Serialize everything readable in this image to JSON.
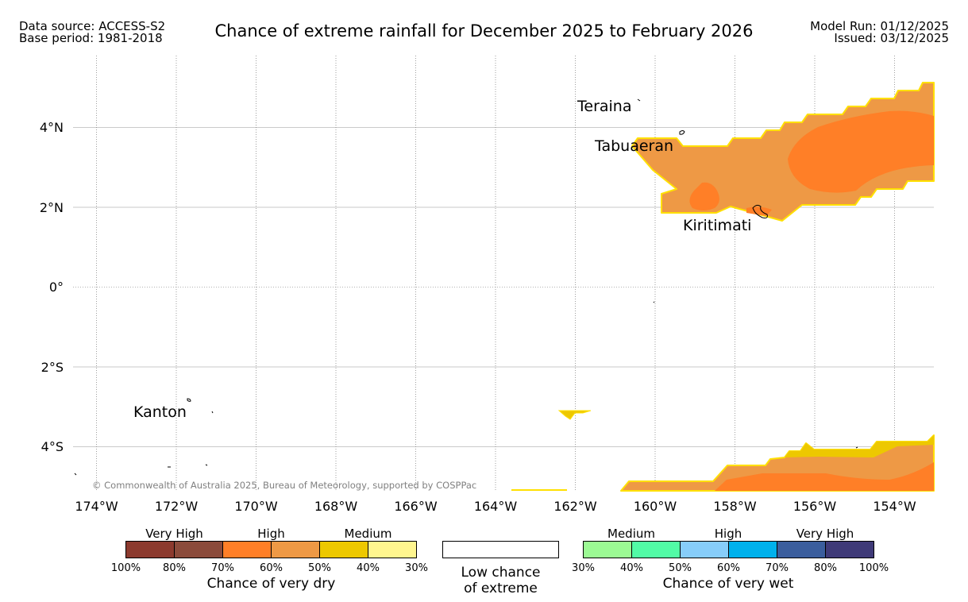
{
  "header": {
    "data_source": "Data source: ACCESS-S2",
    "base_period": "Base period: 1981-2018",
    "title": "Chance of extreme rainfall for December 2025 to February 2026",
    "model_run": "Model Run: 01/12/2025",
    "issued": "Issued: 03/12/2025"
  },
  "map": {
    "lon_range": [
      -174.5,
      -153.0
    ],
    "lat_range": [
      -5.1,
      5.2
    ],
    "lat_ticks": [
      {
        "value": 4,
        "label": "4°N"
      },
      {
        "value": 2,
        "label": "2°N"
      },
      {
        "value": 0,
        "label": "0°"
      },
      {
        "value": -2,
        "label": "2°S"
      },
      {
        "value": -4,
        "label": "4°S"
      }
    ],
    "lon_ticks": [
      {
        "value": -174,
        "label": "174°W"
      },
      {
        "value": -172,
        "label": "172°W"
      },
      {
        "value": -170,
        "label": "170°W"
      },
      {
        "value": -168,
        "label": "168°W"
      },
      {
        "value": -166,
        "label": "166°W"
      },
      {
        "value": -164,
        "label": "164°W"
      },
      {
        "value": -162,
        "label": "162°W"
      },
      {
        "value": -160,
        "label": "160°W"
      },
      {
        "value": -158,
        "label": "158°W"
      },
      {
        "value": -156,
        "label": "156°W"
      },
      {
        "value": -154,
        "label": "154°W"
      }
    ],
    "places": [
      {
        "name": "Teraina"
      },
      {
        "name": "Tabuaeran"
      },
      {
        "name": "Kiritimati"
      },
      {
        "name": "Kanton"
      }
    ],
    "copyright": "© Commonwealth of Australia 2025, Bureau of Meteorology, supported by COSPPac",
    "colors": {
      "very_dry_orange": "#ff7f27",
      "dry_orange": "#ee9945",
      "medium_yellow": "#edc800",
      "gridline": "#b0b0b0"
    }
  },
  "legend": {
    "dry": {
      "categories": [
        "Very High",
        "High",
        "Medium"
      ],
      "colors": [
        "#8c3a2e",
        "#8b4b3b",
        "#ff7f27",
        "#ee9945",
        "#edc800",
        "#fff68f"
      ],
      "ticks": [
        "100%",
        "80%",
        "70%",
        "60%",
        "50%",
        "40%",
        "30%"
      ],
      "label": "Chance of very dry"
    },
    "low": {
      "label_line1": "Low chance",
      "label_line2": "of extreme",
      "color": "#ffffff"
    },
    "wet": {
      "categories": [
        "Medium",
        "High",
        "Very High"
      ],
      "colors": [
        "#9cfa94",
        "#52fba6",
        "#87cdf9",
        "#00b1ec",
        "#3b5e9d",
        "#3f3a78"
      ],
      "ticks": [
        "30%",
        "40%",
        "50%",
        "60%",
        "70%",
        "80%",
        "100%"
      ],
      "label": "Chance of very wet"
    }
  }
}
